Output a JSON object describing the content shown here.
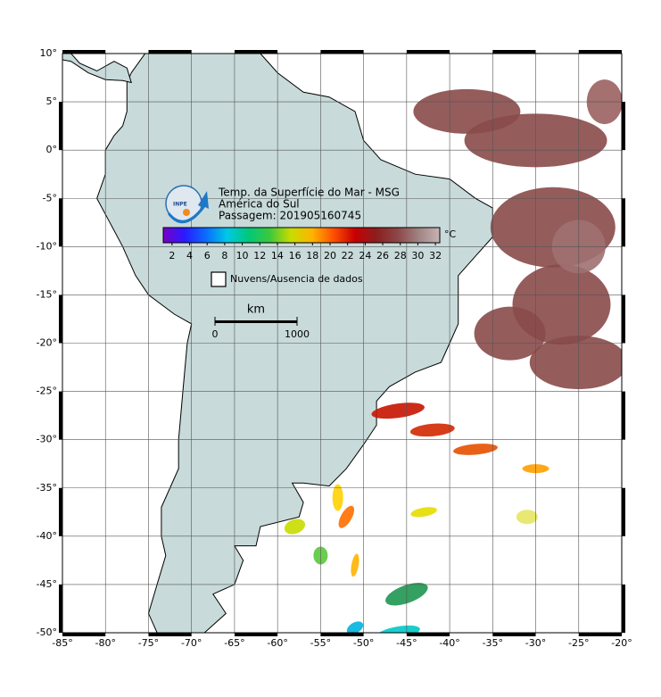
{
  "map": {
    "lon_lim": [
      -85,
      -20
    ],
    "lat_lim": [
      -50,
      10
    ],
    "lon_ticks": [
      {
        "value": -85,
        "label": "-85°"
      },
      {
        "value": -80,
        "label": "-80°"
      },
      {
        "value": -75,
        "label": "-75°"
      },
      {
        "value": -70,
        "label": "-70°"
      },
      {
        "value": -65,
        "label": "-65°"
      },
      {
        "value": -60,
        "label": "-60°"
      },
      {
        "value": -55,
        "label": "-55°"
      },
      {
        "value": -50,
        "label": "-50°"
      },
      {
        "value": -45,
        "label": "-45°"
      },
      {
        "value": -40,
        "label": "-40°"
      },
      {
        "value": -35,
        "label": "-35°"
      },
      {
        "value": -30,
        "label": "-30°"
      },
      {
        "value": -25,
        "label": "-25°"
      },
      {
        "value": -20,
        "label": "-20°"
      }
    ],
    "lat_ticks": [
      {
        "value": 10,
        "label": "10°"
      },
      {
        "value": 5,
        "label": "5°"
      },
      {
        "value": 0,
        "label": "0°"
      },
      {
        "value": -5,
        "label": "-5°"
      },
      {
        "value": -10,
        "label": "-10°"
      },
      {
        "value": -15,
        "label": "-15°"
      },
      {
        "value": -20,
        "label": "-20°"
      },
      {
        "value": -25,
        "label": "-25°"
      },
      {
        "value": -30,
        "label": "-30°"
      },
      {
        "value": -35,
        "label": "-35°"
      },
      {
        "value": -40,
        "label": "-40°"
      },
      {
        "value": -45,
        "label": "-45°"
      },
      {
        "value": -50,
        "label": "-50°"
      }
    ],
    "title_lines": [
      "Temp. da Superfície do Mar - MSG",
      "América do Sul",
      "Passagem: 201905160745"
    ],
    "logo_text": "INPE",
    "colorbar": {
      "lim": [
        1,
        32.5
      ],
      "ticks": [
        2,
        4,
        6,
        8,
        10,
        12,
        14,
        16,
        18,
        20,
        22,
        24,
        26,
        28,
        30,
        32
      ],
      "unit": "°C",
      "colors": [
        "#7a00c8",
        "#2a1aff",
        "#0a6cff",
        "#00c8e6",
        "#00c87a",
        "#3cc83c",
        "#c8dc00",
        "#ffb400",
        "#ff5000",
        "#c80000",
        "#8c1e1e",
        "#8c4646",
        "#a08282",
        "#c8b4b4"
      ]
    },
    "legend": "Nuvens/Ausencia de dados",
    "scale": {
      "unit": "km",
      "ticks": [
        0,
        1000
      ]
    }
  }
}
